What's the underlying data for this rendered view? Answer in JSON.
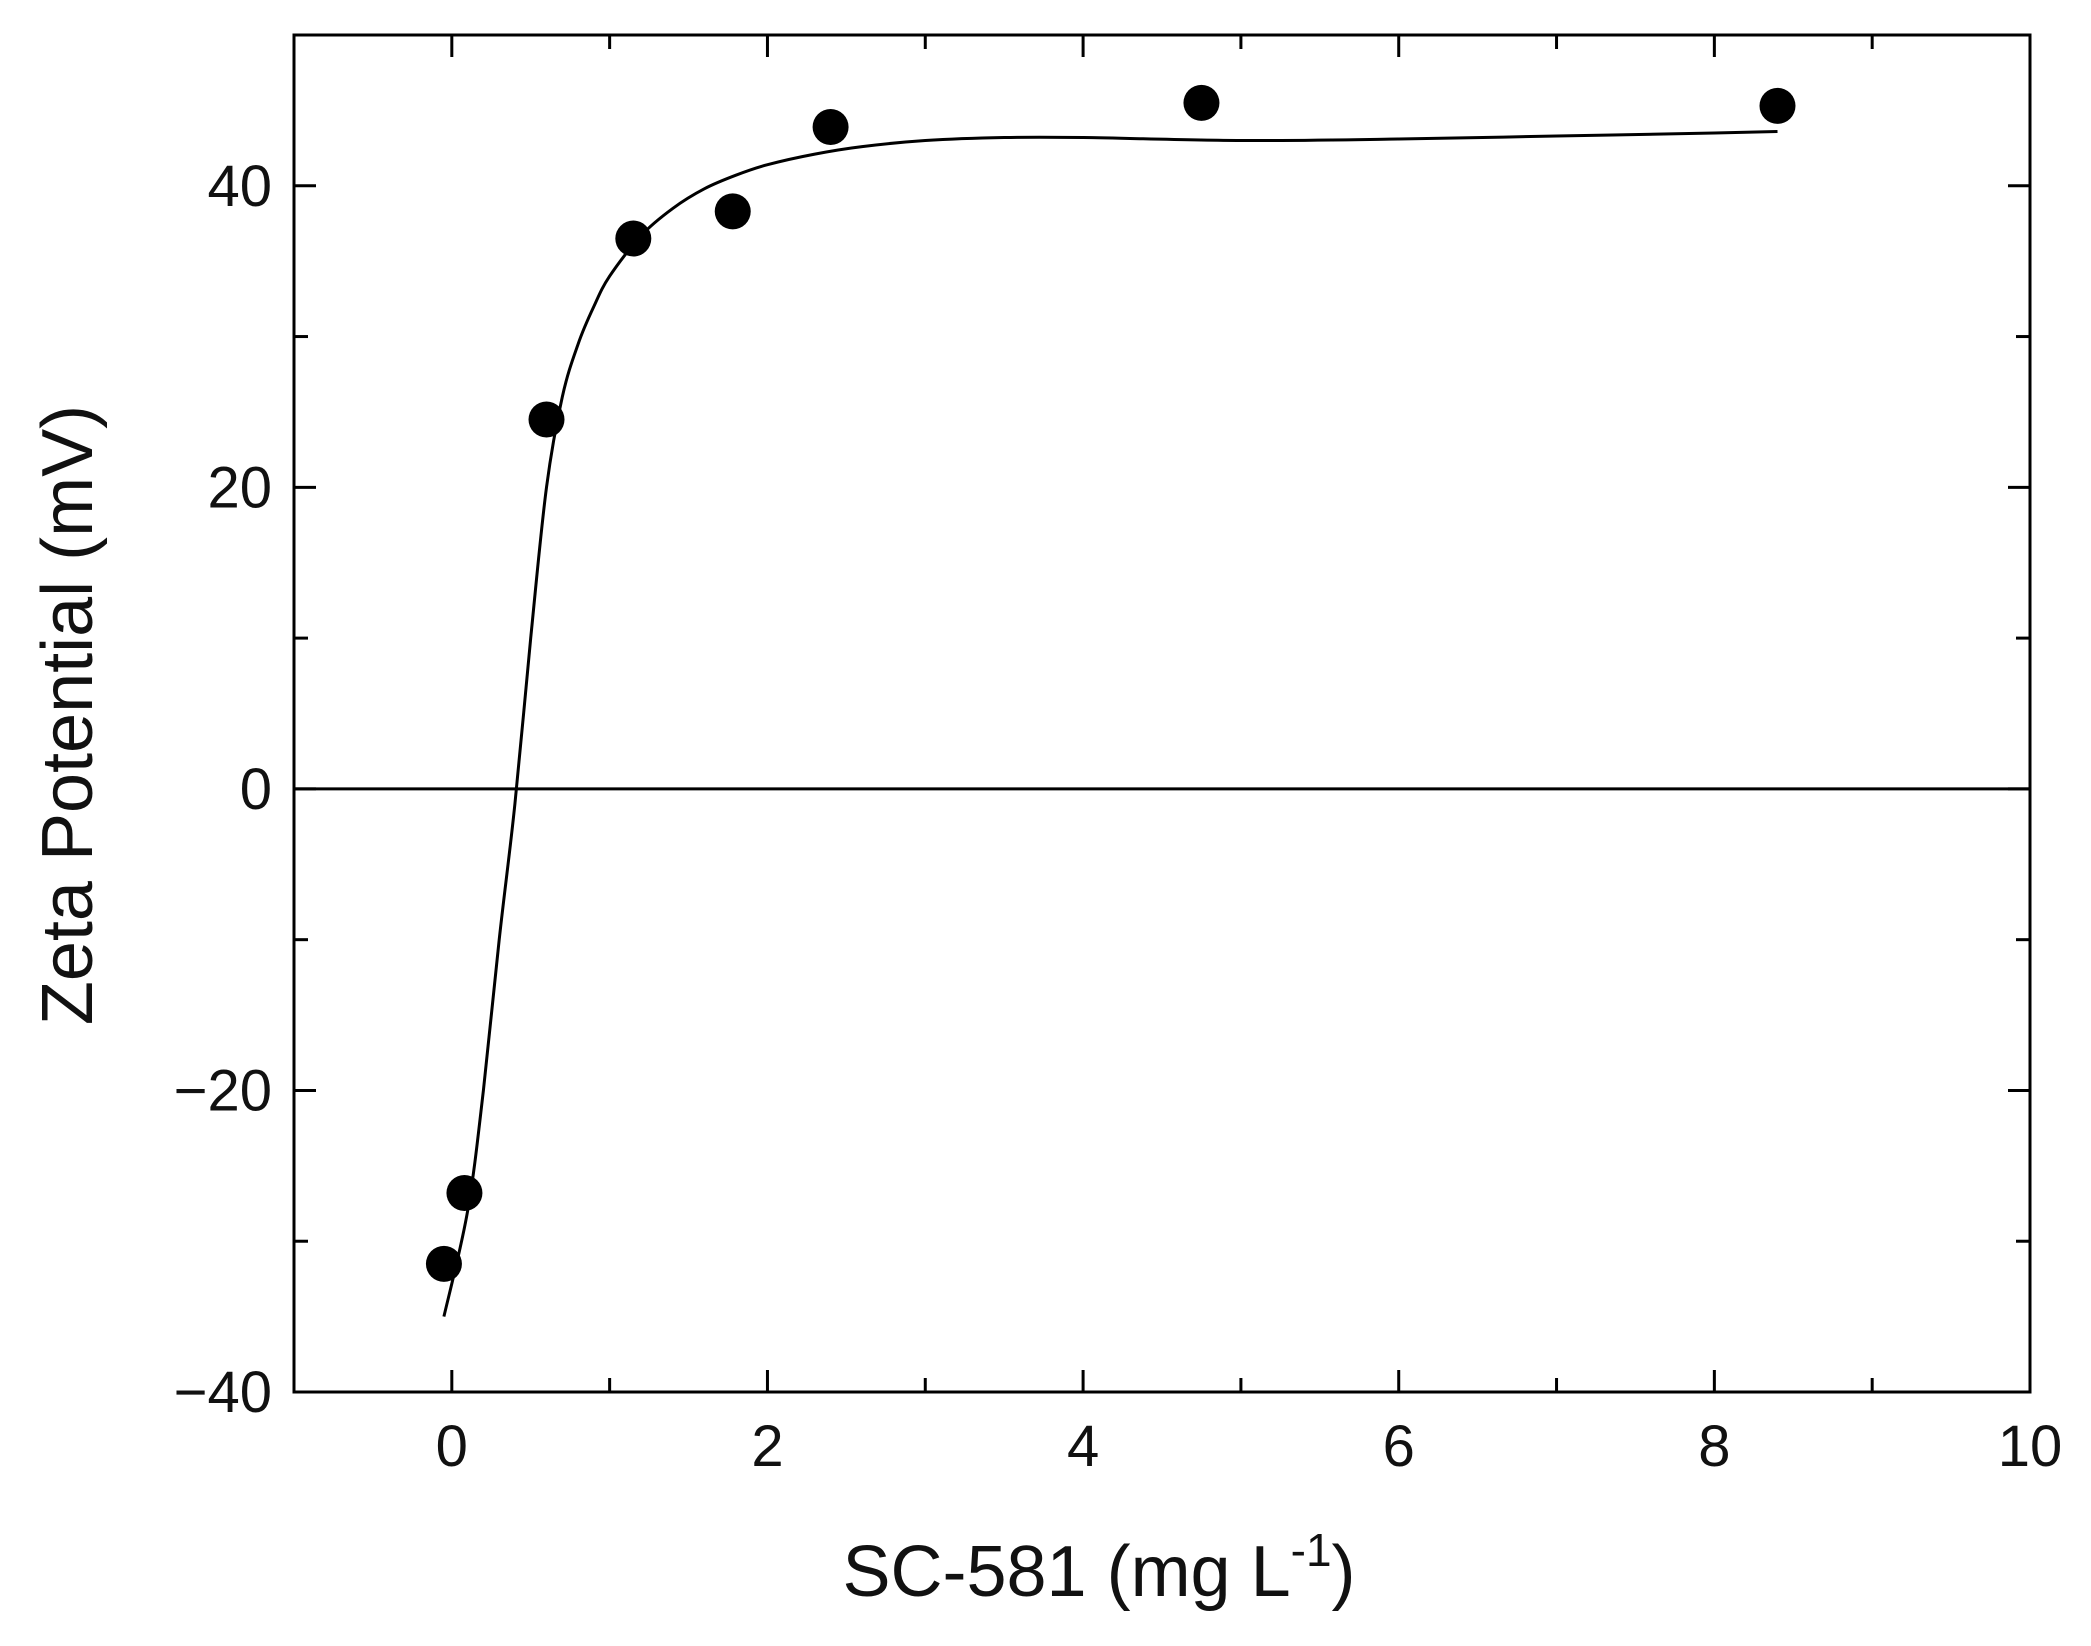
{
  "chart_data": {
    "type": "scatter",
    "title": "",
    "xlabel": "SC-581 (mg L",
    "xlabel_superscript": "-1",
    "xlabel_suffix": ")",
    "ylabel": "Zeta Potential (mV)",
    "xlim": [
      -1,
      10
    ],
    "ylim": [
      -40,
      50
    ],
    "x_ticks": [
      0,
      2,
      4,
      6,
      8,
      10
    ],
    "x_tick_labels": [
      "0",
      "2",
      "4",
      "6",
      "8",
      "10"
    ],
    "x_minor_ticks": [
      -1,
      1,
      3,
      5,
      7,
      9
    ],
    "y_ticks": [
      -40,
      -20,
      0,
      20,
      40
    ],
    "y_tick_labels": [
      "−40",
      "−20",
      "0",
      "20",
      "40"
    ],
    "y_minor_ticks": [
      -30,
      -10,
      10,
      30
    ],
    "grid": false,
    "zero_line": true,
    "series": [
      {
        "kind": "points",
        "marker": "filled-circle",
        "color": "#000000",
        "x": [
          -0.05,
          0.08,
          0.6,
          1.15,
          1.78,
          2.4,
          4.75,
          8.4
        ],
        "y": [
          -31.5,
          -26.8,
          24.5,
          36.5,
          38.3,
          43.9,
          45.5,
          45.3
        ]
      },
      {
        "kind": "fitted-curve",
        "color": "#000000",
        "x": [
          -0.05,
          0.1,
          0.2,
          0.3,
          0.4,
          0.5,
          0.6,
          0.7,
          0.8,
          0.9,
          1.0,
          1.2,
          1.4,
          1.6,
          1.8,
          2.0,
          2.3,
          2.6,
          3.0,
          3.5,
          4.0,
          5.0,
          6.0,
          7.0,
          8.0,
          8.4
        ],
        "y": [
          -35,
          -28,
          -20,
          -10,
          -1,
          10,
          20,
          26,
          29.5,
          32,
          34,
          36.7,
          38.5,
          39.8,
          40.7,
          41.4,
          42.1,
          42.6,
          43.0,
          43.2,
          43.2,
          43.0,
          43.1,
          43.3,
          43.5,
          43.6
        ]
      }
    ]
  }
}
